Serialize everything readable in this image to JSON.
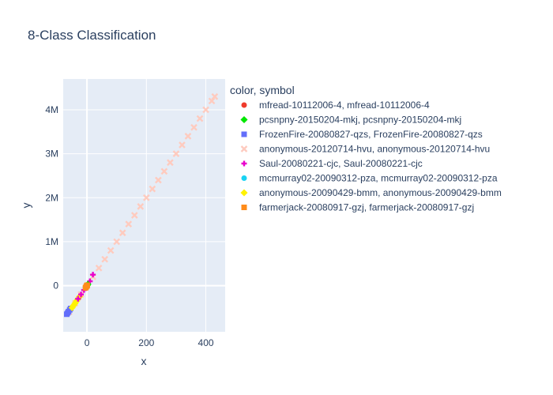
{
  "chart_data": {
    "type": "scatter",
    "title": "8-Class Classification",
    "xlabel": "x",
    "ylabel": "y",
    "xlim": [
      -80,
      465
    ],
    "ylim": [
      -1050000,
      4700000
    ],
    "x_ticks": [
      0,
      200,
      400
    ],
    "y_ticks": [
      0,
      1000000,
      2000000,
      3000000,
      4000000
    ],
    "x_tick_labels": [
      "0",
      "200",
      "400"
    ],
    "y_tick_labels": [
      "0",
      "1M",
      "2M",
      "3M",
      "4M"
    ],
    "grid": true,
    "legend_title": "color, symbol",
    "legend_position": "right",
    "series": [
      {
        "name": "mfread-10112006-4, mfread-10112006-4",
        "color": "#EF3B2C",
        "symbol": "circle",
        "x": [
          -2,
          -1,
          0,
          1,
          2
        ],
        "y": [
          -20000,
          -10000,
          0,
          10000,
          20000
        ]
      },
      {
        "name": "pcsnpny-20150204-mkj, pcsnpny-20150204-mkj",
        "color": "#00E600",
        "symbol": "diamond",
        "x": [
          -3,
          -1,
          0,
          1,
          3
        ],
        "y": [
          -30000,
          -10000,
          0,
          10000,
          30000
        ]
      },
      {
        "name": "FrozenFire-20080827-qzs, FrozenFire-20080827-qzs",
        "color": "#636EFA",
        "symbol": "square",
        "x": [
          -68,
          -65,
          -62,
          -58,
          -55
        ],
        "y": [
          -650000,
          -620000,
          -590000,
          -550000,
          -520000
        ]
      },
      {
        "name": "anonymous-20120714-hvu, anonymous-20120714-hvu",
        "color": "#FECBBF",
        "symbol": "x",
        "x": [
          -60,
          -40,
          -20,
          0,
          20,
          40,
          60,
          80,
          100,
          120,
          140,
          160,
          180,
          200,
          220,
          240,
          260,
          280,
          300,
          320,
          340,
          360,
          380,
          400,
          420,
          430
        ],
        "y": [
          -600000,
          -400000,
          -200000,
          0,
          200000,
          400000,
          600000,
          800000,
          1000000,
          1200000,
          1400000,
          1600000,
          1800000,
          2000000,
          2200000,
          2400000,
          2600000,
          2800000,
          3000000,
          3200000,
          3400000,
          3600000,
          3800000,
          4000000,
          4200000,
          4300000
        ]
      },
      {
        "name": "Saul-20080221-cjc, Saul-20080221-cjc",
        "color": "#E800CC",
        "symbol": "cross",
        "x": [
          -30,
          -20,
          -10,
          0,
          10,
          20
        ],
        "y": [
          -300000,
          -200000,
          -100000,
          0,
          100000,
          250000
        ]
      },
      {
        "name": "mcmurray02-20090312-pza, mcmurray02-20090312-pza",
        "color": "#19D3F3",
        "symbol": "circle",
        "x": [
          -1,
          0,
          1
        ],
        "y": [
          -10000,
          0,
          10000
        ]
      },
      {
        "name": "anonymous-20090429-bmm, anonymous-20090429-bmm",
        "color": "#FFF200",
        "symbol": "diamond",
        "x": [
          -50,
          -45,
          -40,
          -35,
          -30,
          -25
        ],
        "y": [
          -500000,
          -450000,
          -400000,
          -350000,
          -300000,
          -250000
        ]
      },
      {
        "name": "farmerjack-20080917-gzj, farmerjack-20080917-gzj",
        "color": "#FF8C1A",
        "symbol": "square",
        "x": [
          -5,
          -3,
          -1,
          0,
          1
        ],
        "y": [
          -50000,
          -30000,
          -10000,
          0,
          10000
        ]
      }
    ]
  }
}
